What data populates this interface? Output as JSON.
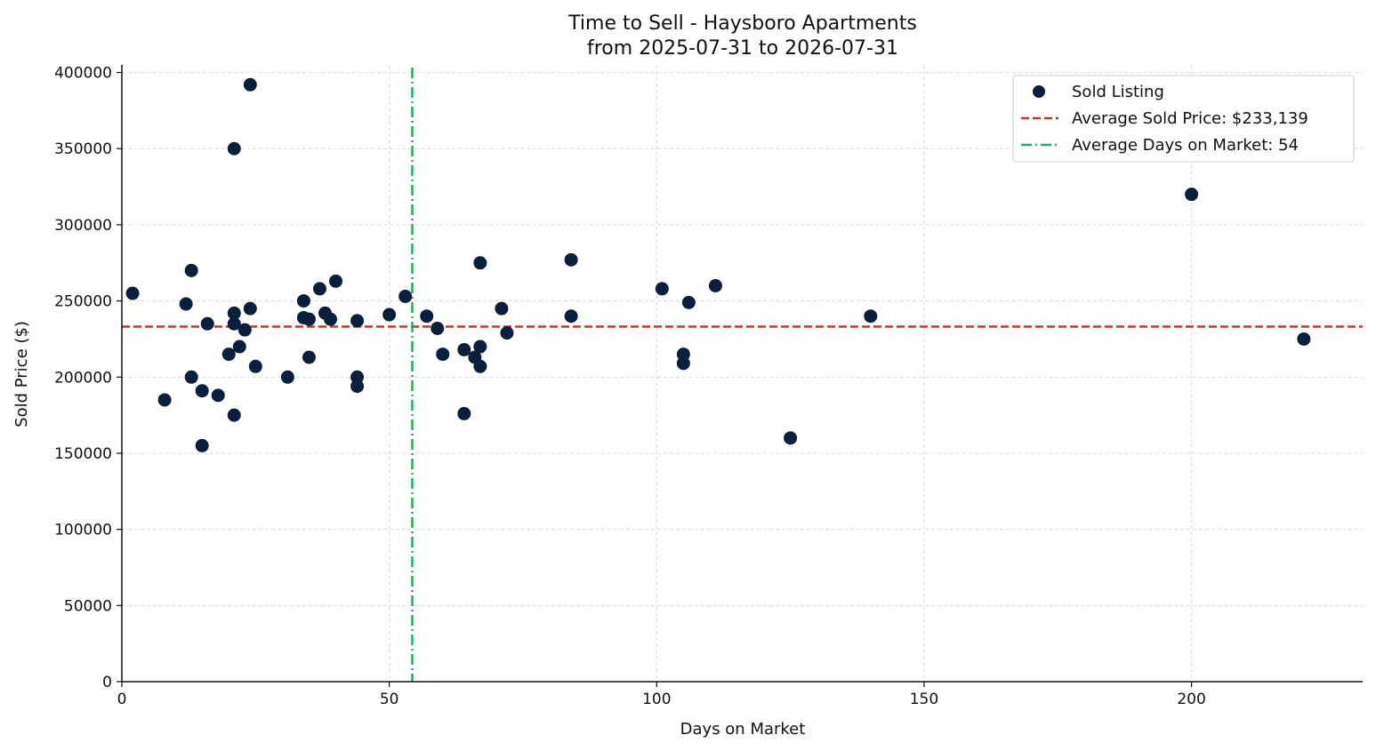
{
  "chart_data": {
    "type": "scatter",
    "title": "Time to Sell - Haysboro Apartments",
    "subtitle": "from 2025-07-31 to 2026-07-31",
    "xlabel": "Days on Market",
    "ylabel": "Sold Price ($)",
    "xlim": [
      0,
      232
    ],
    "ylim": [
      0,
      405000
    ],
    "x_ticks": [
      0,
      50,
      100,
      150,
      200
    ],
    "y_ticks": [
      0,
      50000,
      100000,
      150000,
      200000,
      250000,
      300000,
      350000,
      400000
    ],
    "grid": true,
    "legend_position": "top-right",
    "colors": {
      "points": "#0b1f3a",
      "avg_price_line": "#c0392b",
      "avg_days_line": "#27ae60"
    },
    "series": [
      {
        "name": "Sold Listing",
        "points": [
          {
            "x": 2,
            "y": 255000
          },
          {
            "x": 8,
            "y": 185000
          },
          {
            "x": 12,
            "y": 248000
          },
          {
            "x": 13,
            "y": 270000
          },
          {
            "x": 13,
            "y": 200000
          },
          {
            "x": 15,
            "y": 191000
          },
          {
            "x": 15,
            "y": 155000
          },
          {
            "x": 16,
            "y": 235000
          },
          {
            "x": 18,
            "y": 188000
          },
          {
            "x": 20,
            "y": 215000
          },
          {
            "x": 21,
            "y": 350000
          },
          {
            "x": 21,
            "y": 242000
          },
          {
            "x": 21,
            "y": 235000
          },
          {
            "x": 21,
            "y": 175000
          },
          {
            "x": 22,
            "y": 220000
          },
          {
            "x": 23,
            "y": 231000
          },
          {
            "x": 24,
            "y": 392000
          },
          {
            "x": 24,
            "y": 245000
          },
          {
            "x": 25,
            "y": 207000
          },
          {
            "x": 31,
            "y": 200000
          },
          {
            "x": 34,
            "y": 250000
          },
          {
            "x": 34,
            "y": 239000
          },
          {
            "x": 35,
            "y": 238000
          },
          {
            "x": 35,
            "y": 213000
          },
          {
            "x": 37,
            "y": 258000
          },
          {
            "x": 38,
            "y": 242000
          },
          {
            "x": 39,
            "y": 238000
          },
          {
            "x": 40,
            "y": 263000
          },
          {
            "x": 44,
            "y": 237000
          },
          {
            "x": 44,
            "y": 200000
          },
          {
            "x": 44,
            "y": 194000
          },
          {
            "x": 50,
            "y": 241000
          },
          {
            "x": 53,
            "y": 253000
          },
          {
            "x": 57,
            "y": 240000
          },
          {
            "x": 59,
            "y": 232000
          },
          {
            "x": 60,
            "y": 215000
          },
          {
            "x": 64,
            "y": 218000
          },
          {
            "x": 64,
            "y": 176000
          },
          {
            "x": 66,
            "y": 213000
          },
          {
            "x": 67,
            "y": 275000
          },
          {
            "x": 67,
            "y": 220000
          },
          {
            "x": 67,
            "y": 207000
          },
          {
            "x": 71,
            "y": 245000
          },
          {
            "x": 72,
            "y": 229000
          },
          {
            "x": 84,
            "y": 277000
          },
          {
            "x": 84,
            "y": 240000
          },
          {
            "x": 101,
            "y": 258000
          },
          {
            "x": 105,
            "y": 215000
          },
          {
            "x": 105,
            "y": 209000
          },
          {
            "x": 106,
            "y": 249000
          },
          {
            "x": 111,
            "y": 260000
          },
          {
            "x": 125,
            "y": 160000
          },
          {
            "x": 140,
            "y": 240000
          },
          {
            "x": 200,
            "y": 320000
          },
          {
            "x": 221,
            "y": 225000
          }
        ]
      }
    ],
    "reference_lines": [
      {
        "name": "Average Sold Price: $233,139",
        "orientation": "horizontal",
        "value": 233139,
        "style": "dashed"
      },
      {
        "name": "Average Days on Market: 54",
        "orientation": "vertical",
        "value": 54.3,
        "style": "dashdot"
      }
    ]
  }
}
